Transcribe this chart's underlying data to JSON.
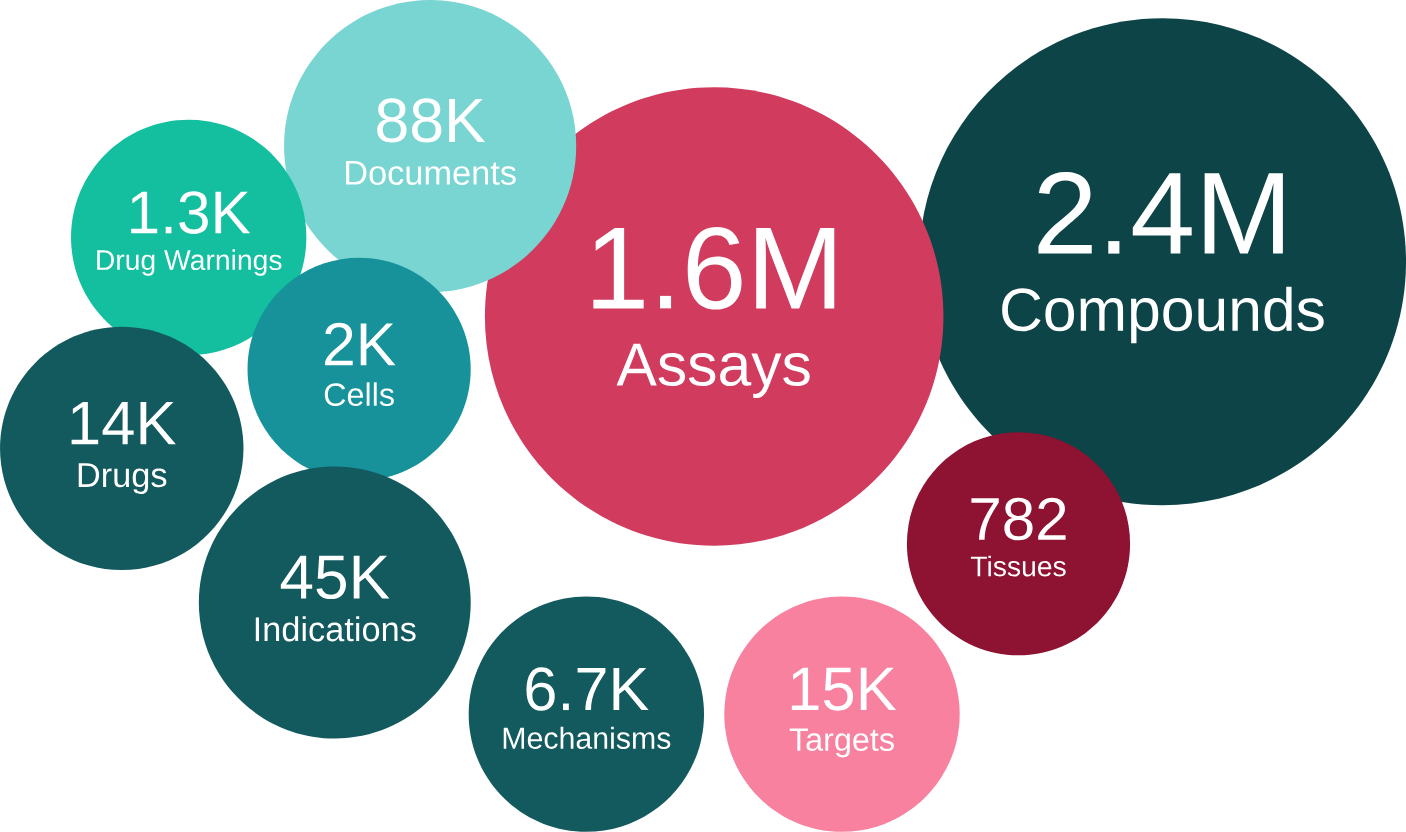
{
  "chart_data": {
    "type": "other",
    "categories": [
      "Compounds",
      "Assays",
      "Documents",
      "Drug Warnings",
      "Cells",
      "Drugs",
      "Indications",
      "Mechanisms",
      "Targets",
      "Tissues"
    ],
    "values": [
      2400000,
      1600000,
      88000,
      1300,
      2000,
      14000,
      45000,
      6700,
      15000,
      782
    ],
    "value_labels": [
      "2.4M",
      "1.6M",
      "88K",
      "1.3K",
      "2K",
      "14K",
      "45K",
      "6.7K",
      "15K",
      "782"
    ],
    "colors": [
      "#0d4447",
      "#d13b5e",
      "#79d5d2",
      "#14bfa0",
      "#17929a",
      "#135a5f",
      "#135a5f",
      "#135a5f",
      "#f7819e",
      "#8e1231"
    ]
  }
}
